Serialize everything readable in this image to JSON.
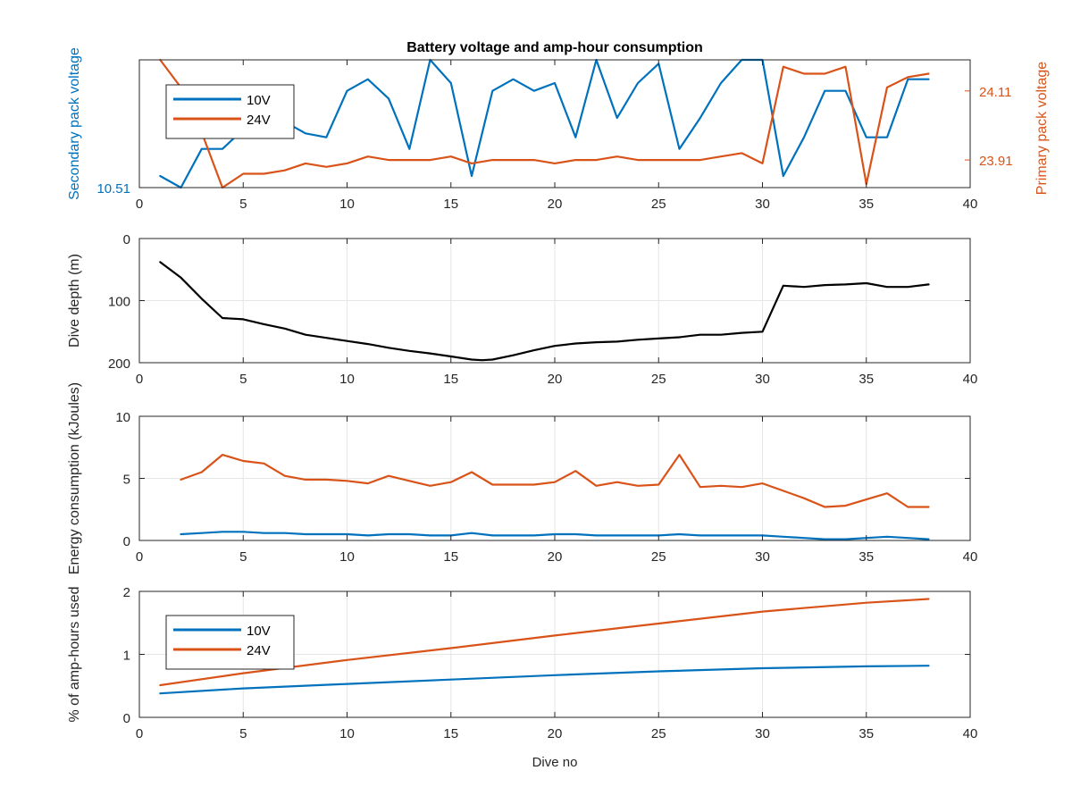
{
  "figure": {
    "title": "Battery voltage and amp-hour consumption",
    "xlabel": "Dive no"
  },
  "colors": {
    "blue": "#0072BD",
    "orange": "#D95319",
    "black": "#000000",
    "grid": "#e6e6e6",
    "axis": "#262626"
  },
  "chart_data": [
    {
      "type": "line",
      "panel": "voltage",
      "title": "Battery voltage and amp-hour consumption",
      "xlabel": "",
      "ylabel_left": "Secondary pack voltage",
      "ylabel_right": "Primary pack voltage",
      "xlim": [
        0,
        40
      ],
      "x_ticks": [
        0,
        5,
        10,
        15,
        20,
        25,
        30,
        35,
        40
      ],
      "ylim_left": [
        10.51,
        10.84
      ],
      "y_ticks_left": [
        10.51
      ],
      "ylim_right": [
        23.83,
        24.2
      ],
      "y_ticks_right": [
        23.91,
        24.11
      ],
      "grid": false,
      "legend": "top-left",
      "series": [
        {
          "name": "10V",
          "axis": "left",
          "color": "blue",
          "x": [
            1,
            2,
            3,
            4,
            5,
            6,
            7,
            8,
            9,
            10,
            11,
            12,
            13,
            14,
            15,
            16,
            17,
            18,
            19,
            20,
            21,
            22,
            23,
            24,
            25,
            26,
            27,
            28,
            29,
            30,
            31,
            32,
            33,
            34,
            35,
            36,
            37,
            38
          ],
          "y": [
            10.54,
            10.51,
            10.61,
            10.61,
            10.66,
            10.71,
            10.68,
            10.65,
            10.64,
            10.76,
            10.79,
            10.74,
            10.61,
            10.84,
            10.78,
            10.54,
            10.76,
            10.79,
            10.76,
            10.78,
            10.64,
            10.84,
            10.69,
            10.78,
            10.83,
            10.61,
            10.69,
            10.78,
            10.84,
            10.84,
            10.54,
            10.64,
            10.76,
            10.76,
            10.64,
            10.64,
            10.79,
            10.79
          ]
        },
        {
          "name": "24V",
          "axis": "right",
          "color": "orange",
          "x": [
            1,
            2,
            3,
            4,
            5,
            6,
            7,
            8,
            9,
            10,
            11,
            12,
            13,
            14,
            15,
            16,
            17,
            18,
            19,
            20,
            21,
            22,
            23,
            24,
            25,
            26,
            27,
            28,
            29,
            30,
            31,
            32,
            33,
            34,
            35,
            36,
            37,
            38
          ],
          "y": [
            24.2,
            24.12,
            23.99,
            23.83,
            23.87,
            23.87,
            23.88,
            23.9,
            23.89,
            23.9,
            23.92,
            23.91,
            23.91,
            23.91,
            23.92,
            23.9,
            23.91,
            23.91,
            23.91,
            23.9,
            23.91,
            23.91,
            23.92,
            23.91,
            23.91,
            23.91,
            23.91,
            23.92,
            23.93,
            23.9,
            24.18,
            24.16,
            24.16,
            24.18,
            23.84,
            24.12,
            24.15,
            24.16
          ]
        }
      ]
    },
    {
      "type": "line",
      "panel": "depth",
      "xlabel": "",
      "ylabel": "Dive depth (m)",
      "xlim": [
        0,
        40
      ],
      "x_ticks": [
        0,
        5,
        10,
        15,
        20,
        25,
        30,
        35,
        40
      ],
      "ylim": [
        0,
        200
      ],
      "y_reversed": true,
      "y_ticks": [
        0,
        100,
        200
      ],
      "grid": true,
      "series": [
        {
          "color": "black",
          "x": [
            1,
            2,
            3,
            4,
            5,
            6,
            7,
            8,
            9,
            10,
            11,
            12,
            13,
            14,
            15,
            16,
            16.5,
            17,
            18,
            19,
            20,
            21,
            22,
            23,
            24,
            25,
            26,
            27,
            28,
            29,
            30,
            31,
            32,
            33,
            34,
            35,
            36,
            37,
            38
          ],
          "y": [
            38,
            63,
            97,
            128,
            130,
            138,
            145,
            155,
            160,
            165,
            170,
            176,
            181,
            185,
            190,
            195,
            196,
            195,
            188,
            180,
            173,
            169,
            167,
            166,
            163,
            161,
            159,
            155,
            155,
            152,
            150,
            76,
            78,
            75,
            74,
            72,
            78,
            78,
            74
          ]
        }
      ]
    },
    {
      "type": "line",
      "panel": "energy",
      "xlabel": "",
      "ylabel": "Energy consumption (kJoules)",
      "xlim": [
        0,
        40
      ],
      "x_ticks": [
        0,
        5,
        10,
        15,
        20,
        25,
        30,
        35,
        40
      ],
      "ylim": [
        0,
        10
      ],
      "y_ticks": [
        0,
        5,
        10
      ],
      "grid": true,
      "series": [
        {
          "color": "orange",
          "x": [
            2,
            3,
            4,
            5,
            6,
            7,
            8,
            9,
            10,
            11,
            12,
            13,
            14,
            15,
            16,
            17,
            18,
            19,
            20,
            21,
            22,
            23,
            24,
            25,
            26,
            27,
            28,
            29,
            30,
            31,
            32,
            33,
            34,
            35,
            36,
            37,
            38
          ],
          "y": [
            4.9,
            5.5,
            6.9,
            6.4,
            6.2,
            5.2,
            4.9,
            4.9,
            4.8,
            4.6,
            5.2,
            4.8,
            4.4,
            4.7,
            5.5,
            4.5,
            4.5,
            4.5,
            4.7,
            5.6,
            4.4,
            4.7,
            4.4,
            4.5,
            6.9,
            4.3,
            4.4,
            4.3,
            4.6,
            4.0,
            3.4,
            2.7,
            2.8,
            3.3,
            3.8,
            2.7,
            2.7
          ]
        },
        {
          "color": "blue",
          "x": [
            2,
            3,
            4,
            5,
            6,
            7,
            8,
            9,
            10,
            11,
            12,
            13,
            14,
            15,
            16,
            17,
            18,
            19,
            20,
            21,
            22,
            23,
            24,
            25,
            26,
            27,
            28,
            29,
            30,
            31,
            32,
            33,
            34,
            35,
            36,
            37,
            38
          ],
          "y": [
            0.5,
            0.6,
            0.7,
            0.7,
            0.6,
            0.6,
            0.5,
            0.5,
            0.5,
            0.4,
            0.5,
            0.5,
            0.4,
            0.4,
            0.6,
            0.4,
            0.4,
            0.4,
            0.5,
            0.5,
            0.4,
            0.4,
            0.4,
            0.4,
            0.5,
            0.4,
            0.4,
            0.4,
            0.4,
            0.3,
            0.2,
            0.1,
            0.1,
            0.2,
            0.3,
            0.2,
            0.1
          ]
        }
      ]
    },
    {
      "type": "line",
      "panel": "amphours",
      "xlabel": "Dive no",
      "ylabel": "% of amp-hours used",
      "xlim": [
        0,
        40
      ],
      "x_ticks": [
        0,
        5,
        10,
        15,
        20,
        25,
        30,
        35,
        40
      ],
      "ylim": [
        0,
        2
      ],
      "y_ticks": [
        0,
        1,
        2
      ],
      "grid": true,
      "legend": "top-left",
      "series": [
        {
          "name": "10V",
          "color": "blue",
          "x": [
            1,
            5,
            10,
            15,
            20,
            25,
            30,
            35,
            38
          ],
          "y": [
            0.38,
            0.46,
            0.53,
            0.6,
            0.67,
            0.73,
            0.78,
            0.81,
            0.82
          ]
        },
        {
          "name": "24V",
          "color": "orange",
          "x": [
            1,
            5,
            10,
            15,
            20,
            25,
            30,
            35,
            38
          ],
          "y": [
            0.51,
            0.7,
            0.91,
            1.1,
            1.3,
            1.49,
            1.68,
            1.82,
            1.88
          ]
        }
      ]
    }
  ]
}
